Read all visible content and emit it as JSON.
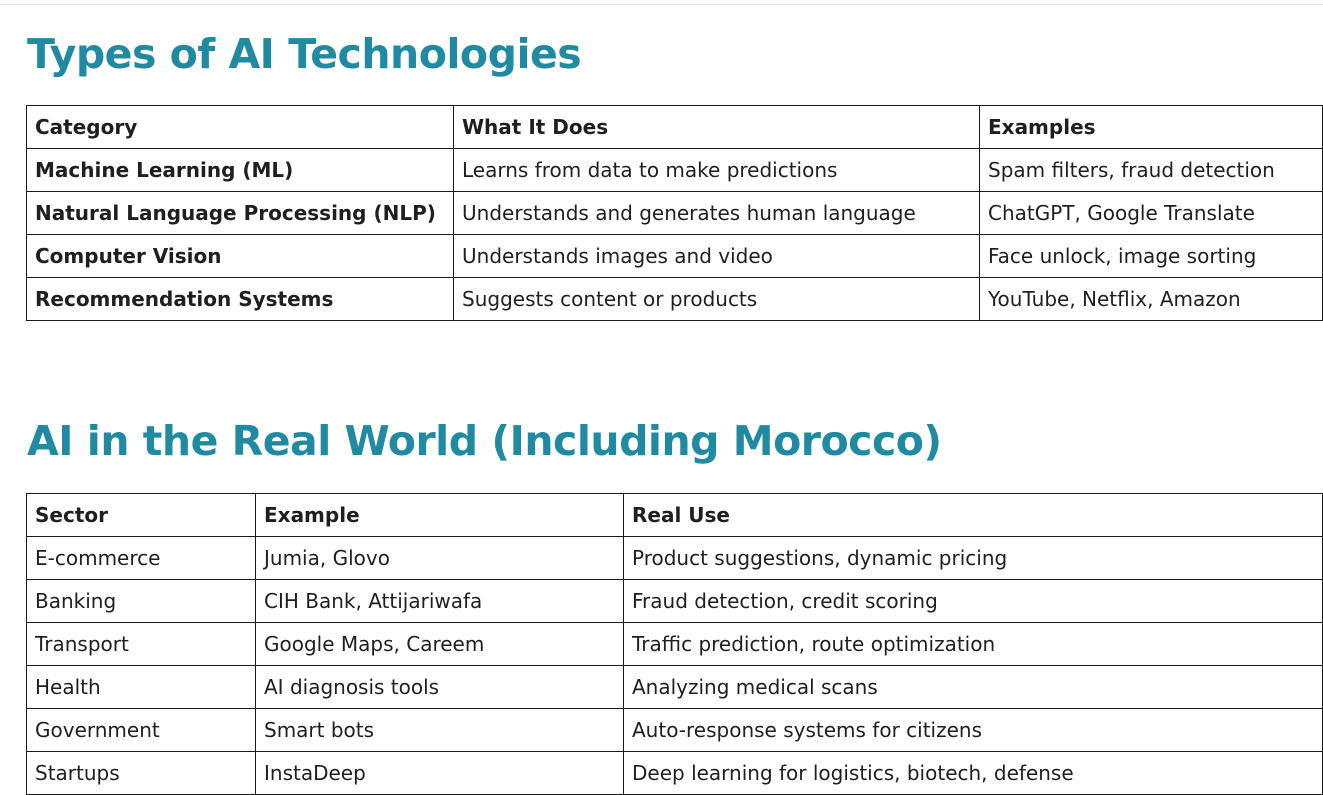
{
  "section1": {
    "title": "Types of AI Technologies",
    "headers": [
      "Category",
      "What It Does",
      "Examples"
    ],
    "rows": [
      [
        "Machine Learning (ML)",
        "Learns from data to make predictions",
        "Spam filters, fraud detection"
      ],
      [
        "Natural Language Processing (NLP)",
        "Understands and generates human language",
        "ChatGPT, Google Translate"
      ],
      [
        "Computer Vision",
        "Understands images and video",
        "Face unlock, image sorting"
      ],
      [
        "Recommendation Systems",
        "Suggests content or products",
        "YouTube, Netflix, Amazon"
      ]
    ]
  },
  "section2": {
    "title": "AI in the Real World (Including Morocco)",
    "headers": [
      "Sector",
      "Example",
      "Real Use"
    ],
    "rows": [
      [
        "E-commerce",
        "Jumia, Glovo",
        "Product suggestions, dynamic pricing"
      ],
      [
        "Banking",
        "CIH Bank, Attijariwafa",
        "Fraud detection, credit scoring"
      ],
      [
        "Transport",
        "Google Maps, Careem",
        "Traffic prediction, route optimization"
      ],
      [
        "Health",
        "AI diagnosis tools",
        "Analyzing medical scans"
      ],
      [
        "Government",
        "Smart bots",
        "Auto-response systems for citizens"
      ],
      [
        "Startups",
        "InstaDeep",
        "Deep learning for logistics, biotech, defense"
      ]
    ]
  },
  "colors": {
    "heading": "#1f8aa1",
    "border": "#1a1a1a",
    "text": "#1f1f1f"
  }
}
